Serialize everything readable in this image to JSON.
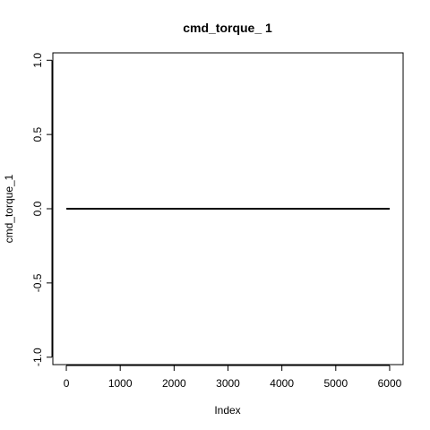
{
  "chart_data": {
    "type": "line",
    "title": "cmd_torque_ 1",
    "xlabel": "Index",
    "ylabel": "cmd_torque_1",
    "xlim": [
      -250,
      6250
    ],
    "ylim": [
      -1.05,
      1.05
    ],
    "x_ticks": [
      0,
      1000,
      2000,
      3000,
      4000,
      5000,
      6000
    ],
    "x_tick_labels": [
      "0",
      "1000",
      "2000",
      "3000",
      "4000",
      "5000",
      "6000"
    ],
    "y_ticks": [
      -1.0,
      -0.5,
      0.0,
      0.5,
      1.0
    ],
    "y_tick_labels": [
      "-1.0",
      "-0.5",
      "0.0",
      "0.5",
      "1.0"
    ],
    "grid": false,
    "series": [
      {
        "x": [
          1,
          6000
        ],
        "values": [
          0.0,
          0.0
        ],
        "color": "#000000"
      }
    ]
  }
}
